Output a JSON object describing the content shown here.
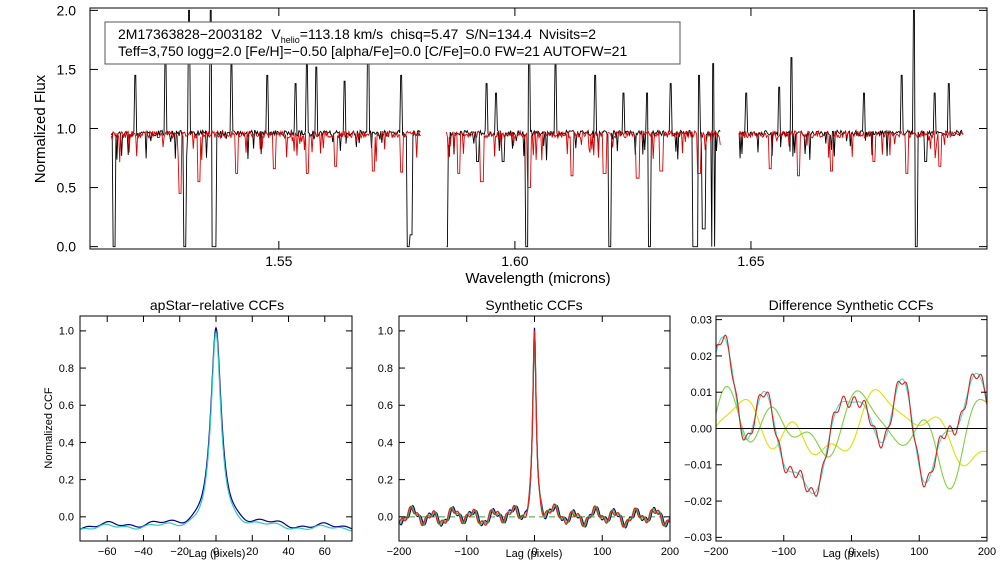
{
  "chart_data": [
    {
      "type": "line",
      "id": "spectrum",
      "xlabel": "Wavelength (microns)",
      "ylabel": "Normalized Flux",
      "xlim": [
        1.51,
        1.7
      ],
      "ylim": [
        -0.02,
        2.02
      ],
      "xticks": [
        {
          "v": 1.55,
          "label": "1.55"
        },
        {
          "v": 1.6,
          "label": "1.60"
        },
        {
          "v": 1.65,
          "label": "1.65"
        }
      ],
      "yticks": [
        {
          "v": 0.0,
          "label": "0.0"
        },
        {
          "v": 0.5,
          "label": "0.5"
        },
        {
          "v": 1.0,
          "label": "1.0"
        },
        {
          "v": 1.5,
          "label": "1.5"
        },
        {
          "v": 2.0,
          "label": "2.0"
        }
      ],
      "info_line1": {
        "star_id": "2M17363828−2003182",
        "vhelio_prefix": "V",
        "vhelio_sub": "helio",
        "vhelio_value": "=113.18 km/s",
        "chisq": "chisq=5.47",
        "snr": "S/N=134.4",
        "nvisits": "Nvisits=2"
      },
      "info_line2": "Teff=3,750 logg=2.0 [Fe/H]=−0.50 [alpha/Fe]=0.0 [C/Fe]=0.0 FW=21 AUTOFW=21",
      "chips": [
        [
          1.5145,
          1.58
        ],
        [
          1.5855,
          1.6435
        ],
        [
          1.6475,
          1.695
        ]
      ],
      "series": [
        {
          "name": "observed",
          "color": "#000000",
          "baseline": 0.96,
          "noise": 0.025,
          "emission": [
            [
              1.5195,
              1.45
            ],
            [
              1.526,
              1.62
            ],
            [
              1.531,
              2.0
            ],
            [
              1.5355,
              2.0
            ],
            [
              1.54,
              1.55
            ],
            [
              1.5475,
              1.45
            ],
            [
              1.5535,
              1.38
            ],
            [
              1.556,
              1.55
            ],
            [
              1.558,
              1.52
            ],
            [
              1.564,
              1.4
            ],
            [
              1.569,
              1.85
            ],
            [
              1.576,
              1.45
            ],
            [
              1.594,
              1.38
            ],
            [
              1.596,
              1.3
            ],
            [
              1.603,
              1.78
            ],
            [
              1.6085,
              1.55
            ],
            [
              1.617,
              1.45
            ],
            [
              1.623,
              1.3
            ],
            [
              1.628,
              1.3
            ],
            [
              1.633,
              1.38
            ],
            [
              1.639,
              1.45
            ],
            [
              1.642,
              1.55
            ],
            [
              1.649,
              1.3
            ],
            [
              1.656,
              1.35
            ],
            [
              1.6585,
              1.6
            ],
            [
              1.674,
              1.3
            ],
            [
              1.682,
              1.45
            ],
            [
              1.6845,
              2.0
            ],
            [
              1.689,
              1.3
            ],
            [
              1.692,
              1.38
            ]
          ],
          "absorption": [
            [
              1.515,
              0.0
            ],
            [
              1.53,
              0.0
            ],
            [
              1.536,
              0.0
            ],
            [
              1.5365,
              0.0
            ],
            [
              1.5775,
              0.0
            ],
            [
              1.578,
              0.1
            ],
            [
              1.5855,
              0.0
            ],
            [
              1.592,
              0.72
            ],
            [
              1.5975,
              0.72
            ],
            [
              1.6025,
              0.0
            ],
            [
              1.62,
              0.0
            ],
            [
              1.6285,
              0.0
            ],
            [
              1.638,
              0.0
            ],
            [
              1.6385,
              0.0
            ],
            [
              1.64,
              0.15
            ],
            [
              1.642,
              0.0
            ],
            [
              1.685,
              0.0
            ],
            [
              1.687,
              0.72
            ]
          ]
        },
        {
          "name": "model",
          "color": "#dd0000",
          "baseline": 0.95,
          "noise": 0.03,
          "emission": [],
          "absorption": [
            [
              1.529,
              0.45
            ],
            [
              1.533,
              0.55
            ],
            [
              1.541,
              0.62
            ],
            [
              1.549,
              0.66
            ],
            [
              1.556,
              0.62
            ],
            [
              1.562,
              0.68
            ],
            [
              1.57,
              0.64
            ],
            [
              1.576,
              0.63
            ],
            [
              1.588,
              0.62
            ],
            [
              1.593,
              0.55
            ],
            [
              1.603,
              0.5
            ],
            [
              1.612,
              0.6
            ],
            [
              1.619,
              0.62
            ],
            [
              1.626,
              0.58
            ],
            [
              1.631,
              0.64
            ],
            [
              1.639,
              0.62
            ],
            [
              1.654,
              0.66
            ],
            [
              1.66,
              0.6
            ],
            [
              1.667,
              0.64
            ],
            [
              1.676,
              0.72
            ],
            [
              1.683,
              0.62
            ],
            [
              1.69,
              0.68
            ]
          ]
        }
      ]
    },
    {
      "type": "line",
      "id": "ccf_apstar",
      "title": "apStar−relative CCFs",
      "xlabel": "Lag (pixels)",
      "ylabel": "Normalized CCF",
      "xlim": [
        -75,
        75
      ],
      "ylim": [
        -0.13,
        1.08
      ],
      "xticks": [
        {
          "v": -60,
          "label": "−60"
        },
        {
          "v": -40,
          "label": "−40"
        },
        {
          "v": -20,
          "label": "−20"
        },
        {
          "v": 0,
          "label": "0"
        },
        {
          "v": 20,
          "label": "20"
        },
        {
          "v": 40,
          "label": "40"
        },
        {
          "v": 60,
          "label": "60"
        }
      ],
      "yticks": [
        {
          "v": 0.0,
          "label": "0.0"
        },
        {
          "v": 0.2,
          "label": "0.2"
        },
        {
          "v": 0.4,
          "label": "0.4"
        },
        {
          "v": 0.6,
          "label": "0.6"
        },
        {
          "v": 0.8,
          "label": "0.8"
        },
        {
          "v": 1.0,
          "label": "1.0"
        }
      ],
      "series": [
        {
          "name": "ccf-1",
          "color": "#00008b",
          "peak": 1.0,
          "width": 3.5,
          "floor": -0.05,
          "wiggle": 0.012
        },
        {
          "name": "ccf-2",
          "color": "#30c8c0",
          "peak": 0.98,
          "width": 3.3,
          "floor": -0.06,
          "wiggle": 0.01
        }
      ]
    },
    {
      "type": "line",
      "id": "ccf_synthetic",
      "title": "Synthetic CCFs",
      "xlabel": "Lag (pixels)",
      "xlim": [
        -200,
        200
      ],
      "ylim": [
        -0.13,
        1.08
      ],
      "xticks": [
        {
          "v": -200,
          "label": "−200"
        },
        {
          "v": -100,
          "label": "−100"
        },
        {
          "v": 0,
          "label": "0"
        },
        {
          "v": 100,
          "label": "100"
        },
        {
          "v": 200,
          "label": "200"
        }
      ],
      "yticks": [
        {
          "v": 0.0,
          "label": "0.0"
        },
        {
          "v": 0.2,
          "label": "0.2"
        },
        {
          "v": 0.4,
          "label": "0.4"
        },
        {
          "v": 0.6,
          "label": "0.6"
        },
        {
          "v": 0.8,
          "label": "0.8"
        },
        {
          "v": 1.0,
          "label": "1.0"
        }
      ],
      "zero_line_color": "#40a040",
      "series": [
        {
          "name": "ccf-a",
          "color": "#00008b",
          "peak": 0.99,
          "width": 3.0,
          "floor": 0.0,
          "wiggle": 0.03
        },
        {
          "name": "ccf-b",
          "color": "#40c040",
          "peak": 0.97,
          "width": 3.0,
          "floor": 0.0,
          "wiggle": 0.03
        },
        {
          "name": "ccf-c",
          "color": "#dd2020",
          "peak": 1.0,
          "width": 2.9,
          "floor": 0.0,
          "wiggle": 0.03
        }
      ]
    },
    {
      "type": "line",
      "id": "ccf_difference",
      "title": "Difference Synthetic CCFs",
      "xlabel": "Lag (pixels)",
      "xlim": [
        -200,
        200
      ],
      "ylim": [
        -0.031,
        0.031
      ],
      "xticks": [
        {
          "v": -200,
          "label": "−200"
        },
        {
          "v": -100,
          "label": "−100"
        },
        {
          "v": 0,
          "label": "0"
        },
        {
          "v": 100,
          "label": "100"
        },
        {
          "v": 200,
          "label": "200"
        }
      ],
      "yticks": [
        {
          "v": -0.03,
          "label": "−0.03"
        },
        {
          "v": -0.02,
          "label": "−0.02"
        },
        {
          "v": -0.01,
          "label": "−0.01"
        },
        {
          "v": 0.0,
          "label": "0.00"
        },
        {
          "v": 0.01,
          "label": "0.01"
        },
        {
          "v": 0.02,
          "label": "0.02"
        },
        {
          "v": 0.03,
          "label": "0.03"
        }
      ],
      "zero_line_color": "#000000",
      "series": [
        {
          "name": "diff-yellow",
          "color": "#e0e000",
          "amp": 0.011,
          "seed": 3
        },
        {
          "name": "diff-green",
          "color": "#80d040",
          "amp": 0.016,
          "seed": 7
        },
        {
          "name": "diff-cyan",
          "color": "#40e0c8",
          "amp": 0.022,
          "seed": 11
        },
        {
          "name": "diff-red",
          "color": "#dd2020",
          "amp": 0.022,
          "seed": 11
        }
      ]
    }
  ]
}
